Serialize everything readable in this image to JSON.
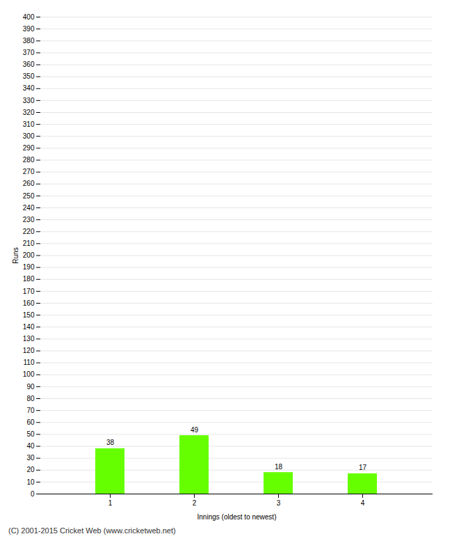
{
  "chart_data": {
    "type": "bar",
    "categories": [
      "1",
      "2",
      "3",
      "4"
    ],
    "values": [
      38,
      49,
      18,
      17
    ],
    "color": "#66ff00",
    "xlabel": "Innings (oldest to newest)",
    "ylabel": "Runs",
    "ylim": [
      0,
      400
    ],
    "yticks": [
      0,
      10,
      20,
      30,
      40,
      50,
      60,
      70,
      80,
      90,
      100,
      110,
      120,
      130,
      140,
      150,
      160,
      170,
      180,
      190,
      200,
      210,
      220,
      230,
      240,
      250,
      260,
      270,
      280,
      290,
      300,
      310,
      320,
      330,
      340,
      350,
      360,
      370,
      380,
      390,
      400
    ],
    "grid": true,
    "data_labels": true,
    "annotations": [
      "(C) 2001-2015 Cricket Web (www.cricketweb.net)"
    ]
  }
}
